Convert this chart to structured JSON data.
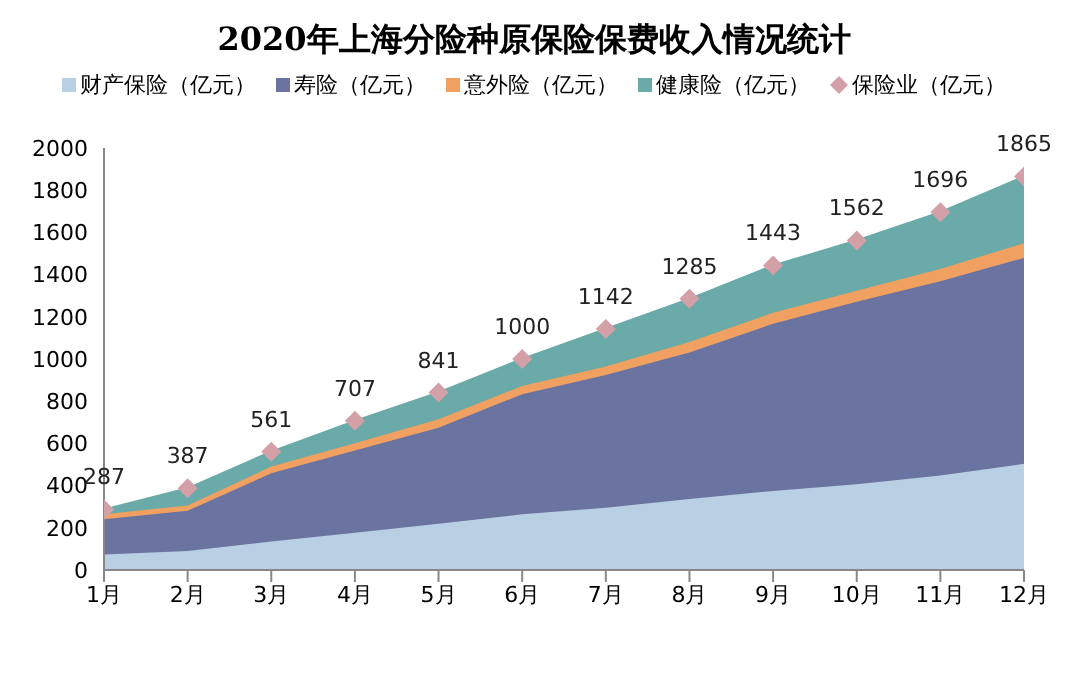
{
  "chart_data": {
    "type": "area",
    "stacked": true,
    "title": "2020年上海分险种原保险保费收入情况统计",
    "categories": [
      "1月",
      "2月",
      "3月",
      "4月",
      "5月",
      "6月",
      "7月",
      "8月",
      "9月",
      "10月",
      "11月",
      "12月"
    ],
    "series": [
      {
        "name": "财产保险（亿元）",
        "color": "#b9cfe3",
        "values": [
          73,
          90,
          135,
          177,
          219,
          264,
          295,
          337,
          375,
          406,
          448,
          503
        ]
      },
      {
        "name": "寿险（亿元）",
        "color": "#6b73a0",
        "values": [
          167,
          191,
          323,
          389,
          455,
          569,
          629,
          694,
          792,
          865,
          920,
          976
        ]
      },
      {
        "name": "意外险（亿元）",
        "color": "#f0a060",
        "values": [
          24,
          25,
          32,
          35,
          41,
          39,
          41,
          49,
          52,
          52,
          59,
          70
        ]
      },
      {
        "name": "健康险（亿元）",
        "color": "#6aaaa8",
        "values": [
          23,
          81,
          71,
          106,
          126,
          128,
          177,
          205,
          224,
          239,
          269,
          316
        ]
      },
      {
        "name": "保险业（亿元）",
        "type": "scatter",
        "marker": "diamond",
        "color": "#d4a0a8",
        "values": [
          287,
          387,
          561,
          707,
          841,
          1000,
          1142,
          1285,
          1443,
          1562,
          1696,
          1865
        ],
        "value_labels": [
          "287",
          "387",
          "561",
          "707",
          "841",
          "1000",
          "1142",
          "1285",
          "1443",
          "1562",
          "1696",
          "1865"
        ]
      }
    ],
    "ylim": [
      0,
      2000
    ],
    "yticks": [
      0,
      200,
      400,
      600,
      800,
      1000,
      1200,
      1400,
      1600,
      1800,
      2000
    ],
    "legend": "top"
  }
}
